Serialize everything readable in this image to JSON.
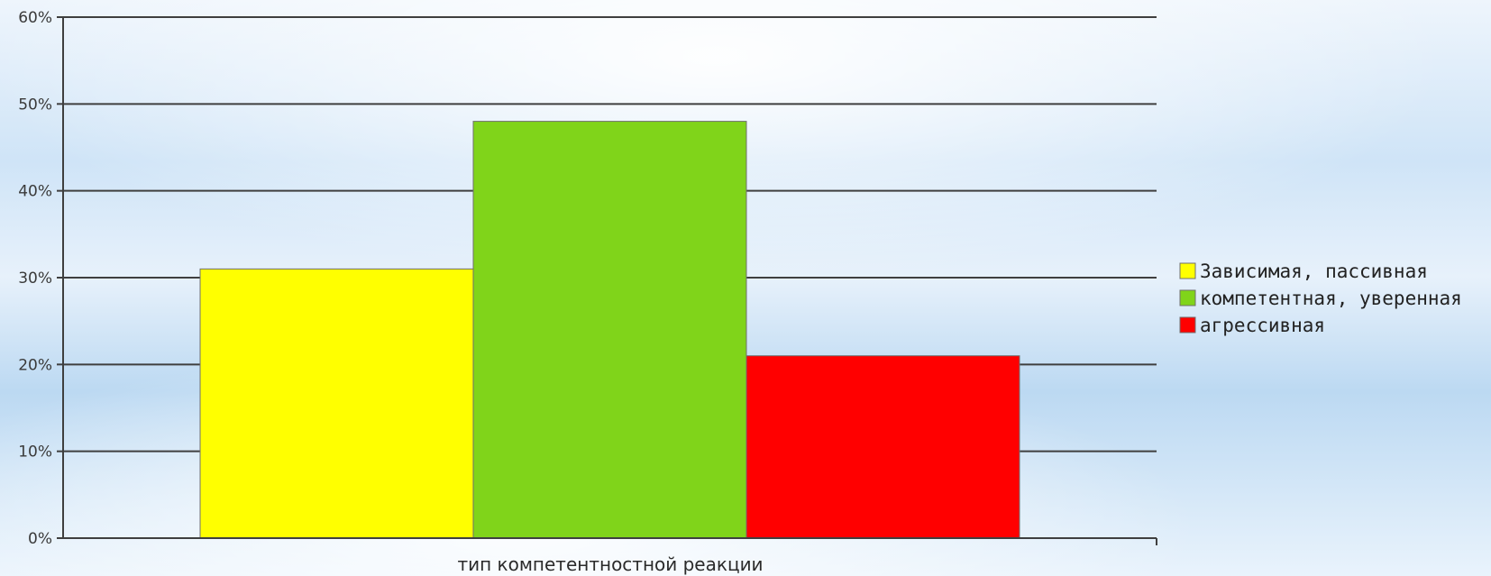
{
  "chart_data": {
    "type": "bar",
    "title": "",
    "xlabel": "тип компетентностной реакции",
    "ylabel": "",
    "categories": [
      "тип компетентностной реакции"
    ],
    "ylim": [
      0,
      60
    ],
    "yticks": [
      0,
      10,
      20,
      30,
      40,
      50,
      60
    ],
    "ytick_labels": [
      "0%",
      "10%",
      "20%",
      "30%",
      "40%",
      "50%",
      "60%"
    ],
    "grid": true,
    "legend_position": "right",
    "series": [
      {
        "name": "Зависимая, пассивная",
        "values": [
          31
        ],
        "color": "#ffff00"
      },
      {
        "name": "компетентная, уверенная",
        "values": [
          48
        ],
        "color": "#80d41a"
      },
      {
        "name": "агрессивная",
        "values": [
          21
        ],
        "color": "#ff0000"
      }
    ]
  }
}
